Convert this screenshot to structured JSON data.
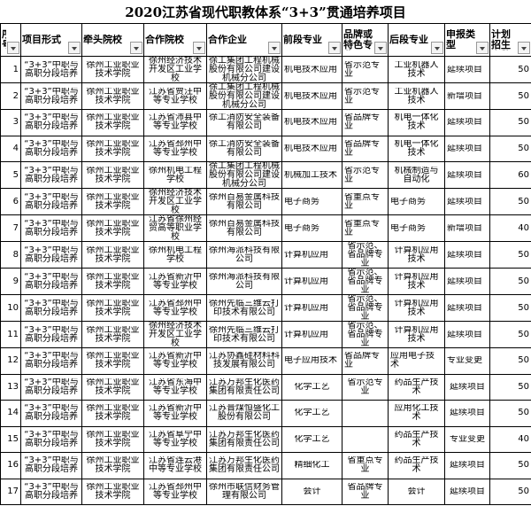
{
  "title": "2020江苏省现代职教体系“3+3”贯通培养项目",
  "headers": [
    "序号",
    "项目形式",
    "牵头院校",
    "合作院校",
    "合作企业",
    "前段专业",
    "品牌或特色专业",
    "后段专业",
    "申报类型",
    "计划招生人数"
  ],
  "dropdown_icon": "chevron-down-icon",
  "rows": [
    [
      "1",
      "“3+3”中职与高职分段培养",
      "徐州工业职业技术学院",
      "徐州经济技术开发区工业学校",
      "徐工集团工程机械股份有限公司建设机械分公司",
      "机电技术应用",
      "省示范专业",
      "工业机器人技术",
      "延续项目",
      "50"
    ],
    [
      "2",
      "“3+3”中职与高职分段培养",
      "徐州工业职业技术学院",
      "江苏省贾汪中等专业学校",
      "徐工集团工程机械股份有限公司建设机械分公司",
      "机电技术应用",
      "省示范专业",
      "工业机器人技术",
      "新增项目",
      "50"
    ],
    [
      "3",
      "“3+3”中职与高职分段培养",
      "徐州工业职业技术学院",
      "江苏省沛县中等专业学校",
      "徐工消防安全装备有限公司",
      "机电技术应用",
      "省品牌专业",
      "机电一体化技术",
      "延续项目",
      "50"
    ],
    [
      "4",
      "“3+3”中职与高职分段培养",
      "徐州工业职业技术学院",
      "江苏省邳州中等专业学校",
      "徐工消防安全装备有限公司",
      "机电技术应用",
      "省品牌专业",
      "机电一体化技术",
      "延续项目",
      "50"
    ],
    [
      "5",
      "“3+3”中职与高职分段培养",
      "徐州工业职业技术学院",
      "徐州机电工程学校",
      "徐工集团工程机械股份有限公司建设机械分公司",
      "机械加工技术",
      "省示范专业",
      "机械制造与自动化",
      "延续项目",
      "60"
    ],
    [
      "6",
      "“3+3”中职与高职分段培养",
      "徐州工业职业技术学院",
      "徐州经济技术开发区工业学校",
      "徐州百易金属科技有限公司",
      "电子商务",
      "省重点专业",
      "电子商务",
      "延续项目",
      "50"
    ],
    [
      "7",
      "“3+3”中职与高职分段培养",
      "徐州工业职业技术学院",
      "江苏省徐州经贸高等职业学校",
      "徐州百易金属科技有限公司",
      "电子商务",
      "省重点专业",
      "电子商务",
      "新增项目",
      "40"
    ],
    [
      "8",
      "“3+3”中职与高职分段培养",
      "徐州工业职业技术学院",
      "徐州机电工程学校",
      "徐州海派科技有限公司",
      "计算机应用",
      "省示范、省品牌专业",
      "计算机应用技术",
      "延续项目",
      "50"
    ],
    [
      "9",
      "“3+3”中职与高职分段培养",
      "徐州工业职业技术学院",
      "江苏省新沂中等专业学校",
      "徐州海派科技有限公司",
      "计算机应用",
      "省示范、省品牌专业",
      "计算机应用技术",
      "延续项目",
      "50"
    ],
    [
      "10",
      "“3+3”中职与高职分段培养",
      "徐州工业职业技术学院",
      "江苏省邳州中等专业学校",
      "徐州先临三维云打印技术有限公司",
      "计算机应用",
      "省示范、省品牌专业",
      "计算机应用技术",
      "延续项目",
      "50"
    ],
    [
      "11",
      "“3+3”中职与高职分段培养",
      "徐州工业职业技术学院",
      "徐州经济技术开发区工业学校",
      "徐州先临三维云打印技术有限公司",
      "计算机应用",
      "省示范、省品牌专业",
      "计算机应用技术",
      "延续项目",
      "50"
    ],
    [
      "12",
      "“3+3”中职与高职分段培养",
      "徐州工业职业技术学院",
      "江苏省新沂中等专业学校",
      "江苏协鑫硅材料科技发展有限公司",
      "电子应用技术",
      "省品牌专业",
      "应用电子技术",
      "专业变更",
      "50"
    ],
    [
      "13",
      "“3+3”中职与高职分段培养",
      "徐州工业职业技术学院",
      "江苏省东海中等专业学校",
      "江苏万邦生化医药集团有限责任公司",
      "化学工艺",
      "省示范专业",
      "药品生产技术",
      "延续项目",
      "50"
    ],
    [
      "14",
      "“3+3”中职与高职分段培养",
      "徐州工业职业技术学院",
      "江苏省新沂中等专业学校",
      "江苏晋煤恒盛化工股份有限公司",
      "化学工艺",
      "",
      "应用化工技术",
      "延续项目",
      "50"
    ],
    [
      "15",
      "“3+3”中职与高职分段培养",
      "徐州工业职业技术学院",
      "江苏省阜宁中等专业学校",
      "江苏万邦生化医药集团有限责任公司",
      "化学工艺",
      "",
      "药品生产技术",
      "专业变更",
      "40"
    ],
    [
      "16",
      "“3+3”中职与高职分段培养",
      "徐州工业职业技术学院",
      "江苏省连云港中等专业学校",
      "江苏万邦生化医药集团有限责任公司",
      "精细化工",
      "省重点专业",
      "药品生产技术",
      "延续项目",
      "50"
    ],
    [
      "17",
      "“3+3”中职与高职分段培养",
      "徐州工业职业技术学院",
      "江苏省邳州中等专业学校",
      "徐州市联信财务管理有限公司",
      "会计",
      "省品牌专业",
      "会计",
      "延续项目",
      "50"
    ]
  ]
}
